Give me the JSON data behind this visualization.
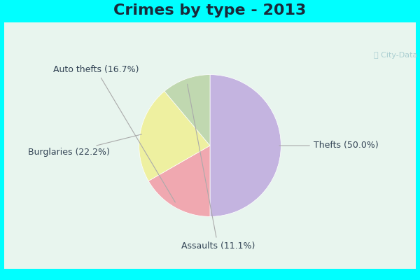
{
  "title": "Crimes by type - 2013",
  "slices": [
    {
      "label": "Thefts (50.0%)",
      "value": 50.0,
      "color": "#c4b4e0"
    },
    {
      "label": "Auto thefts (16.7%)",
      "value": 16.7,
      "color": "#f0a8b0"
    },
    {
      "label": "Burglaries (22.2%)",
      "value": 22.2,
      "color": "#eef0a0"
    },
    {
      "label": "Assaults (11.1%)",
      "value": 11.1,
      "color": "#c0d8b0"
    }
  ],
  "bg_border": "#00ffff",
  "bg_inner": "#d8ede0",
  "title_fontsize": 16,
  "label_fontsize": 9,
  "label_color": "#334455",
  "title_color": "#1a2a3a",
  "watermark": "ⓘ City-Data.com",
  "watermark_color": "#a0c8cc"
}
